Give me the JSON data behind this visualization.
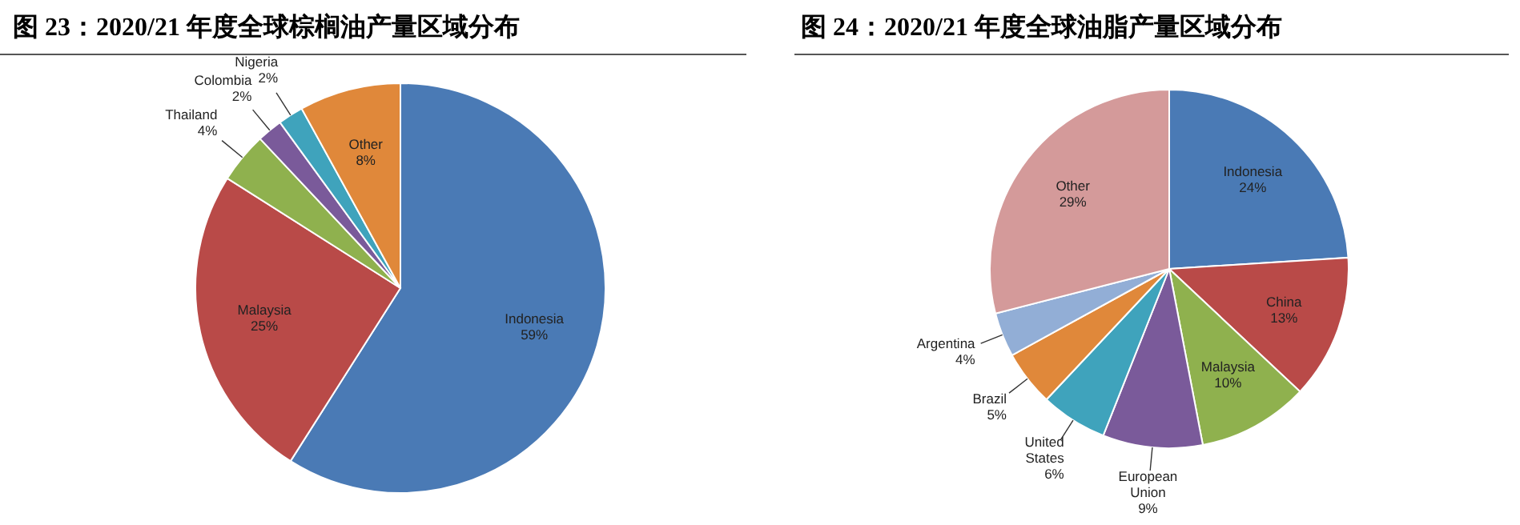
{
  "chart_data": [
    {
      "type": "pie",
      "title": "图 23：2020/21 年度全球棕榈油产量区域分布",
      "categories": [
        "Indonesia",
        "Malaysia",
        "Thailand",
        "Colombia",
        "Nigeria",
        "Other"
      ],
      "values": [
        59,
        25,
        4,
        2,
        2,
        8
      ],
      "colors": [
        "#4a7ab5",
        "#b94a48",
        "#8fb14e",
        "#7a5a9a",
        "#3fa3bc",
        "#e0883a"
      ],
      "value_labels": [
        "59%",
        "25%",
        "4%",
        "2%",
        "2%",
        "8%"
      ]
    },
    {
      "type": "pie",
      "title": "图 24：2020/21 年度全球油脂产量区域分布",
      "categories": [
        "Indonesia",
        "China",
        "Malaysia",
        "European Union",
        "United States",
        "Brazil",
        "Argentina",
        "Other"
      ],
      "values": [
        24,
        13,
        10,
        9,
        6,
        5,
        4,
        29
      ],
      "colors": [
        "#4a7ab5",
        "#b94a48",
        "#8fb14e",
        "#7a5a9a",
        "#3fa3bc",
        "#e0883a",
        "#92aed6",
        "#d49a9a"
      ],
      "value_labels": [
        "24%",
        "13%",
        "10%",
        "9%",
        "6%",
        "5%",
        "4%",
        "29%"
      ]
    }
  ]
}
